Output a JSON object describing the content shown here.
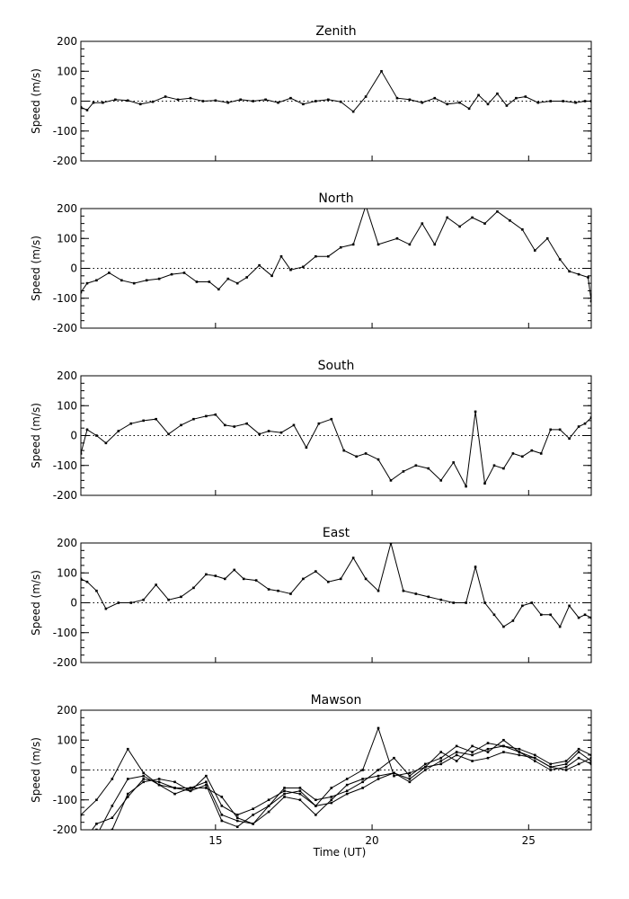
{
  "figure": {
    "xlabel": "Time (UT)"
  },
  "chart_data": [
    {
      "type": "line",
      "title": "Zenith",
      "ylabel": "Speed (m/s)",
      "xlim": [
        10.7,
        27.0
      ],
      "ylim": [
        -200,
        200
      ],
      "yticks": [
        -200,
        -100,
        0,
        100,
        200
      ],
      "xticks": [
        15,
        20,
        25
      ],
      "show_xticklabels": false,
      "zero_line": true,
      "series": [
        {
          "x": [
            10.7,
            10.9,
            11.1,
            11.4,
            11.8,
            12.2,
            12.6,
            13.0,
            13.4,
            13.8,
            14.2,
            14.6,
            15.0,
            15.4,
            15.8,
            16.2,
            16.6,
            17.0,
            17.4,
            17.8,
            18.2,
            18.6,
            19.0,
            19.4,
            19.8,
            20.3,
            20.8,
            21.2,
            21.6,
            22.0,
            22.4,
            22.8,
            23.1,
            23.4,
            23.7,
            24.0,
            24.3,
            24.6,
            24.9,
            25.3,
            25.7,
            26.1,
            26.5,
            26.8,
            27.0
          ],
          "y": [
            -20,
            -30,
            -5,
            -5,
            5,
            2,
            -10,
            -2,
            15,
            5,
            10,
            0,
            2,
            -5,
            5,
            0,
            5,
            -5,
            10,
            -10,
            0,
            5,
            -2,
            -35,
            15,
            100,
            10,
            5,
            -5,
            10,
            -10,
            -5,
            -25,
            20,
            -10,
            25,
            -15,
            10,
            15,
            -5,
            0,
            0,
            -5,
            0,
            0
          ]
        }
      ]
    },
    {
      "type": "line",
      "title": "North",
      "ylabel": "Speed (m/s)",
      "xlim": [
        10.7,
        27.0
      ],
      "ylim": [
        -200,
        200
      ],
      "yticks": [
        -200,
        -100,
        0,
        100,
        200
      ],
      "xticks": [
        15,
        20,
        25
      ],
      "show_xticklabels": false,
      "zero_line": true,
      "series": [
        {
          "x": [
            10.7,
            10.9,
            11.2,
            11.6,
            12.0,
            12.4,
            12.8,
            13.2,
            13.6,
            14.0,
            14.4,
            14.8,
            15.1,
            15.4,
            15.7,
            16.0,
            16.4,
            16.8,
            17.1,
            17.4,
            17.8,
            18.2,
            18.6,
            19.0,
            19.4,
            19.8,
            20.2,
            20.8,
            21.2,
            21.6,
            22.0,
            22.4,
            22.8,
            23.2,
            23.6,
            24.0,
            24.4,
            24.8,
            25.2,
            25.6,
            26.0,
            26.3,
            26.6,
            26.9,
            27.0
          ],
          "y": [
            -80,
            -50,
            -40,
            -15,
            -40,
            -50,
            -40,
            -35,
            -20,
            -15,
            -45,
            -45,
            -70,
            -35,
            -50,
            -30,
            10,
            -25,
            40,
            -5,
            5,
            40,
            40,
            70,
            80,
            210,
            80,
            100,
            80,
            150,
            80,
            170,
            140,
            170,
            150,
            190,
            160,
            130,
            60,
            100,
            30,
            -10,
            -20,
            -30,
            -110
          ]
        }
      ]
    },
    {
      "type": "line",
      "title": "South",
      "ylabel": "Speed (m/s)",
      "xlim": [
        10.7,
        27.0
      ],
      "ylim": [
        -200,
        200
      ],
      "yticks": [
        -200,
        -100,
        0,
        100,
        200
      ],
      "xticks": [
        15,
        20,
        25
      ],
      "show_xticklabels": false,
      "zero_line": true,
      "series": [
        {
          "x": [
            10.7,
            10.9,
            11.2,
            11.5,
            11.9,
            12.3,
            12.7,
            13.1,
            13.5,
            13.9,
            14.3,
            14.7,
            15.0,
            15.3,
            15.6,
            16.0,
            16.4,
            16.7,
            17.1,
            17.5,
            17.9,
            18.3,
            18.7,
            19.1,
            19.5,
            19.8,
            20.2,
            20.6,
            21.0,
            21.4,
            21.8,
            22.2,
            22.6,
            23.0,
            23.3,
            23.6,
            23.9,
            24.2,
            24.5,
            24.8,
            25.1,
            25.4,
            25.7,
            26.0,
            26.3,
            26.6,
            26.8,
            27.0
          ],
          "y": [
            -60,
            20,
            0,
            -25,
            15,
            40,
            50,
            55,
            5,
            35,
            55,
            65,
            70,
            35,
            30,
            40,
            5,
            15,
            10,
            35,
            -40,
            40,
            55,
            -50,
            -70,
            -60,
            -80,
            -150,
            -120,
            -100,
            -110,
            -150,
            -90,
            -170,
            80,
            -160,
            -100,
            -110,
            -60,
            -70,
            -50,
            -60,
            20,
            20,
            -10,
            30,
            40,
            60
          ]
        }
      ]
    },
    {
      "type": "line",
      "title": "East",
      "ylabel": "Speed (m/s)",
      "xlim": [
        10.7,
        27.0
      ],
      "ylim": [
        -200,
        200
      ],
      "yticks": [
        -200,
        -100,
        0,
        100,
        200
      ],
      "xticks": [
        15,
        20,
        25
      ],
      "show_xticklabels": false,
      "zero_line": true,
      "series": [
        {
          "x": [
            10.7,
            10.9,
            11.2,
            11.5,
            11.9,
            12.3,
            12.7,
            13.1,
            13.5,
            13.9,
            14.3,
            14.7,
            15.0,
            15.3,
            15.6,
            15.9,
            16.3,
            16.7,
            17.0,
            17.4,
            17.8,
            18.2,
            18.6,
            19.0,
            19.4,
            19.8,
            20.2,
            20.6,
            21.0,
            21.4,
            21.8,
            22.2,
            22.6,
            23.0,
            23.3,
            23.6,
            23.9,
            24.2,
            24.5,
            24.8,
            25.1,
            25.4,
            25.7,
            26.0,
            26.3,
            26.6,
            26.8,
            27.0
          ],
          "y": [
            80,
            70,
            40,
            -20,
            0,
            0,
            10,
            60,
            10,
            20,
            50,
            95,
            90,
            80,
            110,
            80,
            75,
            45,
            40,
            30,
            80,
            105,
            70,
            80,
            150,
            80,
            40,
            200,
            40,
            30,
            20,
            10,
            0,
            0,
            120,
            0,
            -40,
            -80,
            -60,
            -10,
            0,
            -40,
            -40,
            -80,
            -10,
            -50,
            -40,
            -50
          ]
        }
      ]
    },
    {
      "type": "line",
      "title": "Mawson",
      "ylabel": "Speed (m/s)",
      "xlabel": "Time (UT)",
      "xlim": [
        10.7,
        27.0
      ],
      "ylim": [
        -200,
        200
      ],
      "yticks": [
        -200,
        -100,
        0,
        100,
        200
      ],
      "xticks": [
        15,
        20,
        25
      ],
      "show_xticklabels": true,
      "zero_line": true,
      "series": [
        {
          "x": [
            10.7,
            11.2,
            11.7,
            12.2,
            12.7,
            13.2,
            13.7,
            14.2,
            14.7,
            15.2,
            15.7,
            16.2,
            16.7,
            17.2,
            17.7,
            18.2,
            18.7,
            19.2,
            19.7,
            20.2,
            20.7,
            21.2,
            21.7,
            22.2,
            22.7,
            23.2,
            23.7,
            24.2,
            24.7,
            25.2,
            25.7,
            26.2,
            26.6,
            27.0
          ],
          "y": [
            -150,
            -100,
            -30,
            70,
            -10,
            -50,
            -60,
            -70,
            -20,
            -120,
            -150,
            -130,
            -100,
            -70,
            -80,
            -120,
            -60,
            -30,
            0,
            140,
            -20,
            -10,
            10,
            60,
            30,
            80,
            60,
            100,
            60,
            40,
            10,
            20,
            60,
            30
          ]
        },
        {
          "x": [
            10.7,
            11.2,
            11.7,
            12.2,
            12.7,
            13.2,
            13.7,
            14.2,
            14.7,
            15.2,
            15.7,
            16.2,
            16.7,
            17.2,
            17.7,
            18.2,
            18.7,
            19.2,
            19.7,
            20.2,
            20.7,
            21.2,
            21.7,
            22.2,
            22.7,
            23.2,
            23.7,
            24.2,
            24.7,
            25.2,
            25.7,
            26.2,
            26.6,
            27.0
          ],
          "y": [
            -270,
            -220,
            -120,
            -30,
            -20,
            -50,
            -80,
            -60,
            -60,
            -90,
            -160,
            -180,
            -120,
            -60,
            -60,
            -100,
            -90,
            -70,
            -40,
            0,
            40,
            -20,
            20,
            40,
            80,
            60,
            90,
            80,
            70,
            50,
            20,
            30,
            70,
            50
          ]
        },
        {
          "x": [
            10.7,
            11.2,
            11.7,
            12.2,
            12.7,
            13.2,
            13.7,
            14.2,
            14.7,
            15.2,
            15.7,
            16.2,
            16.7,
            17.2,
            17.7,
            18.2,
            18.7,
            19.2,
            19.7,
            20.2,
            20.7,
            21.2,
            21.7,
            22.2,
            22.7,
            23.2,
            23.7,
            24.2,
            24.7,
            25.2,
            25.7,
            26.2,
            26.6,
            27.0
          ],
          "y": [
            -250,
            -180,
            -160,
            -90,
            -30,
            -40,
            -60,
            -60,
            -40,
            -150,
            -170,
            -180,
            -140,
            -90,
            -100,
            -150,
            -100,
            -50,
            -30,
            -20,
            -10,
            -40,
            0,
            30,
            60,
            50,
            70,
            80,
            60,
            30,
            0,
            10,
            40,
            20
          ]
        },
        {
          "x": [
            10.7,
            11.2,
            11.7,
            12.2,
            12.7,
            13.2,
            13.7,
            14.2,
            14.7,
            15.2,
            15.7,
            16.2,
            16.7,
            17.2,
            17.7,
            18.2,
            18.7,
            19.2,
            19.7,
            20.2,
            20.7,
            21.2,
            21.7,
            22.2,
            22.7,
            23.2,
            23.7,
            24.2,
            24.7,
            25.2,
            25.7,
            26.2,
            26.6,
            27.0
          ],
          "y": [
            -270,
            -200,
            -200,
            -80,
            -40,
            -30,
            -40,
            -70,
            -50,
            -170,
            -190,
            -150,
            -120,
            -80,
            -70,
            -120,
            -110,
            -80,
            -60,
            -30,
            -10,
            -30,
            10,
            20,
            50,
            30,
            40,
            60,
            50,
            40,
            10,
            0,
            20,
            40
          ]
        }
      ]
    }
  ]
}
